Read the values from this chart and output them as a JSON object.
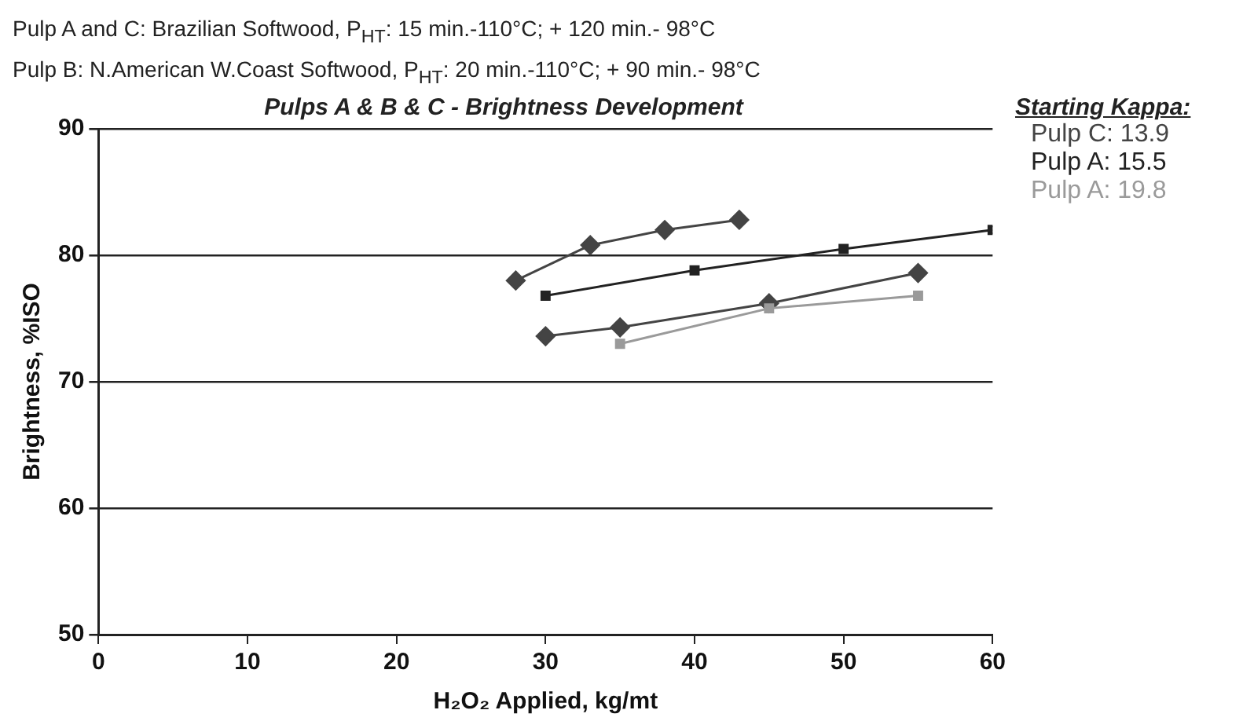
{
  "chart_data": {
    "type": "line",
    "title": "Pulps A & B & C - Brightness Development",
    "xlabel": "H₂O₂ Applied, kg/mt",
    "ylabel": "Brightness, %ISO",
    "legend_title": "Starting Kappa:",
    "annotations": [
      "Pulp A and C: Brazilian Softwood, P$_{HT}$: 15 min.-110°C; + 120 min.- 98°C",
      "Pulp B: N.American W.Coast Softwood, P$_{HT}$: 20 min.-110°C; + 90 min.- 98°C"
    ],
    "series": [
      {
        "name": "Pulp C: 13.9",
        "color": "#444444",
        "marker": "diamond",
        "x": [
          28,
          33,
          38,
          43
        ],
        "values": [
          78,
          80.8,
          82,
          82.8
        ]
      },
      {
        "name": "Pulp A: 15.5",
        "color": "#222222",
        "marker": "square",
        "x": [
          30,
          40,
          50,
          60
        ],
        "values": [
          76.8,
          78.8,
          80.5,
          82
        ]
      },
      {
        "name": "Pulp A: 19.8",
        "color": "#9a9a9a",
        "marker": "square",
        "x": [
          35,
          45,
          55
        ],
        "values": [
          73,
          75.8,
          76.8
        ]
      },
      {
        "color": "#444444",
        "marker": "diamond",
        "x": [
          30,
          35,
          45,
          55
        ],
        "values": [
          73.6,
          74.3,
          76.2,
          78.6
        ]
      }
    ],
    "xlim": [
      0,
      60
    ],
    "xticks": [
      0,
      10,
      20,
      30,
      40,
      50,
      60
    ],
    "ylim": [
      50,
      90
    ],
    "yticks": [
      50,
      60,
      70,
      80,
      90
    ],
    "grid": "y",
    "legend": "top right"
  }
}
